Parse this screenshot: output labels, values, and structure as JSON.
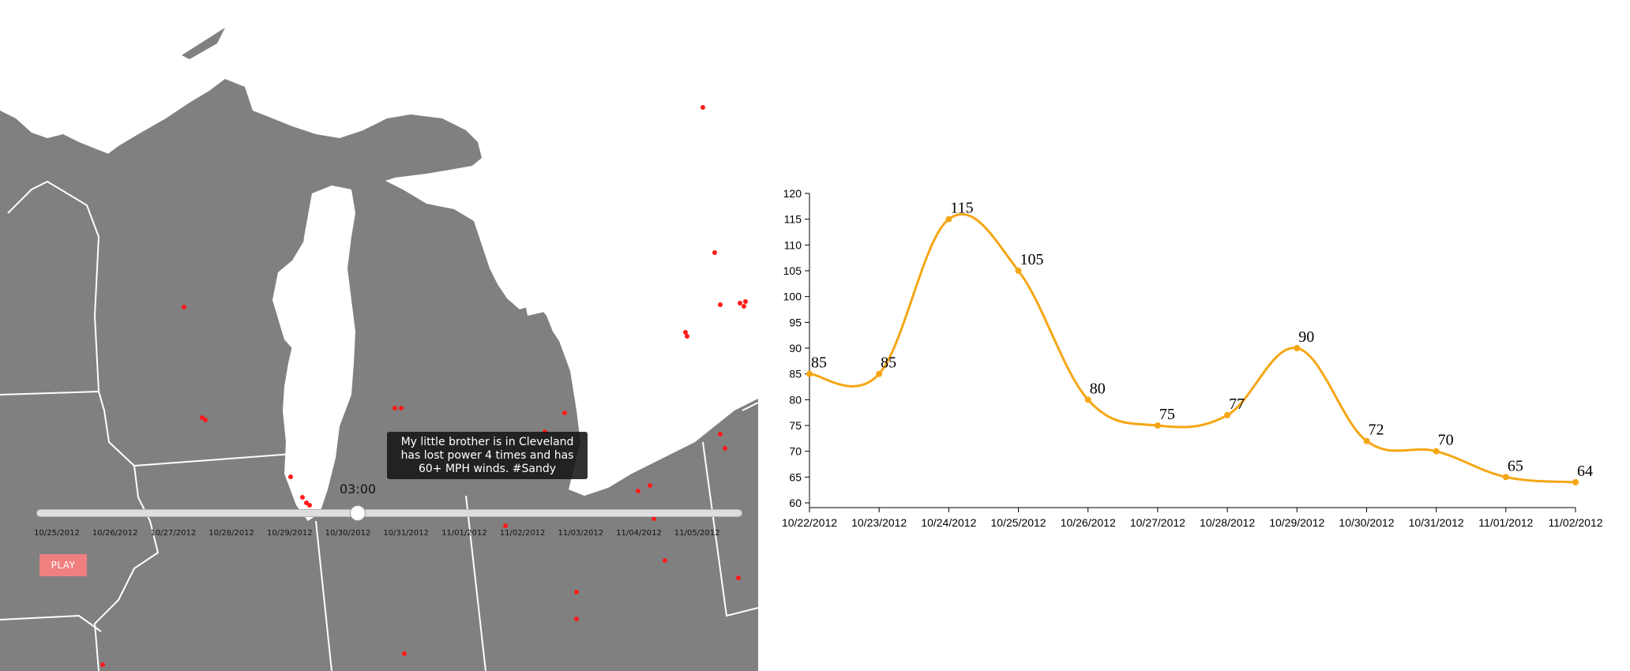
{
  "map": {
    "tooltip_text": "My little brother is in Cleveland has lost power 4 times and has 60+ MPH winds. #Sandy",
    "time_label": "03:00",
    "slider_value_fraction": 0.455,
    "slider_ticks": [
      "10/25/2012",
      "10/26/2012",
      "10/27/2012",
      "10/28/2012",
      "10/29/2012",
      "10/30/2012",
      "10/31/2012",
      "11/01/2012",
      "11/02/2012",
      "11/03/2012",
      "11/04/2012",
      "11/05/2012"
    ],
    "play_label": "PLAY",
    "colors": {
      "land": "#808080",
      "water": "#ffffff",
      "border": "#ffffff",
      "tweet_dot": "#ff1a1a"
    }
  },
  "chart_data": {
    "type": "line",
    "categories": [
      "10/22/2012",
      "10/23/2012",
      "10/24/2012",
      "10/25/2012",
      "10/26/2012",
      "10/27/2012",
      "10/28/2012",
      "10/29/2012",
      "10/30/2012",
      "10/31/2012",
      "11/01/2012",
      "11/02/2012"
    ],
    "values": [
      85,
      85,
      115,
      105,
      80,
      75,
      77,
      90,
      72,
      70,
      65,
      64
    ],
    "y_ticks": [
      "60",
      "65",
      "70",
      "75",
      "80",
      "85",
      "90",
      "95",
      "100",
      "105",
      "110",
      "115",
      "120"
    ],
    "ylim": [
      60,
      120
    ],
    "grid": false,
    "line_color": "#f5a614"
  }
}
